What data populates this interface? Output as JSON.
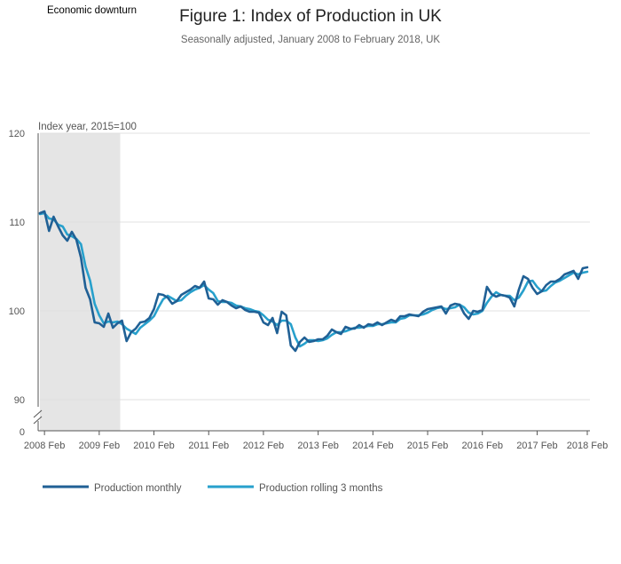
{
  "chart_data": {
    "type": "line",
    "title": "Figure 1: Index of Production in UK",
    "subtitle": "Seasonally adjusted, January 2008 to February 2018, UK",
    "ylabel": "Index year, 2015=100",
    "xlabel": "",
    "ylim": [
      90,
      120
    ],
    "y_ticks": [
      90,
      100,
      110,
      120
    ],
    "y_zero_label": "0",
    "axis_break": true,
    "grid": true,
    "x_start": "2008 Jan",
    "x_end": "2018 Feb",
    "x_tick_labels": [
      "2008 Feb",
      "2009 Feb",
      "2010 Feb",
      "2011 Feb",
      "2012 Feb",
      "2013 Feb",
      "2014 Feb",
      "2015 Feb",
      "2016 Feb",
      "2017 Feb",
      "2018 Feb"
    ],
    "shaded_region": {
      "label": "Economic downturn",
      "from": "2008 Jan",
      "to": "2009 Jun"
    },
    "legend_position": "bottom",
    "colors": {
      "monthly": "#206095",
      "rolling": "#27a0cc",
      "shade": "#e5e5e5",
      "grid": "#e0e0e0",
      "axis": "#555555"
    },
    "series": [
      {
        "name": "Production monthly",
        "values": [
          111.0,
          111.2,
          109.0,
          110.6,
          109.5,
          108.5,
          107.9,
          108.9,
          108.0,
          106.0,
          102.6,
          101.3,
          98.7,
          98.6,
          98.2,
          99.7,
          98.1,
          98.6,
          98.9,
          96.6,
          97.6,
          98.0,
          98.7,
          98.8,
          99.2,
          100.2,
          101.9,
          101.8,
          101.5,
          100.8,
          101.1,
          101.8,
          102.1,
          102.4,
          102.8,
          102.6,
          103.3,
          101.4,
          101.3,
          100.7,
          101.2,
          101.0,
          100.6,
          100.3,
          100.5,
          100.1,
          99.9,
          99.9,
          99.8,
          98.7,
          98.4,
          99.2,
          97.5,
          99.9,
          99.5,
          96.1,
          95.5,
          96.5,
          97.0,
          96.5,
          96.6,
          96.8,
          96.8,
          97.2,
          97.9,
          97.6,
          97.4,
          98.2,
          98.0,
          98.0,
          98.4,
          98.1,
          98.5,
          98.4,
          98.7,
          98.4,
          98.7,
          99.0,
          98.8,
          99.4,
          99.4,
          99.6,
          99.5,
          99.4,
          99.9,
          100.2,
          100.3,
          100.4,
          100.5,
          99.7,
          100.6,
          100.8,
          100.7,
          99.7,
          99.1,
          100.0,
          99.9,
          100.1,
          102.7,
          101.9,
          101.6,
          101.8,
          101.7,
          101.5,
          100.5,
          102.4,
          103.9,
          103.6,
          102.6,
          101.9,
          102.2,
          102.9,
          103.3,
          103.3,
          103.6,
          104.1,
          104.3,
          104.5,
          103.6,
          104.8,
          104.9
        ]
      },
      {
        "name": "Production rolling 3 months",
        "values": [
          110.9,
          111.0,
          110.4,
          110.3,
          109.7,
          109.5,
          108.6,
          108.4,
          108.1,
          107.5,
          105.0,
          103.4,
          100.8,
          99.5,
          98.6,
          98.8,
          98.7,
          98.8,
          98.5,
          98.0,
          97.7,
          97.4,
          98.1,
          98.5,
          98.9,
          99.4,
          100.4,
          101.3,
          101.7,
          101.4,
          101.1,
          101.2,
          101.7,
          102.1,
          102.4,
          102.6,
          102.9,
          102.4,
          102.0,
          101.1,
          101.0,
          101.0,
          100.9,
          100.6,
          100.5,
          100.3,
          100.2,
          100.0,
          99.9,
          99.5,
          99.0,
          98.8,
          98.4,
          98.9,
          98.9,
          98.5,
          97.0,
          96.0,
          96.3,
          96.7,
          96.7,
          96.6,
          96.7,
          96.9,
          97.3,
          97.6,
          97.6,
          97.7,
          97.9,
          98.1,
          98.1,
          98.2,
          98.3,
          98.3,
          98.5,
          98.5,
          98.6,
          98.7,
          98.7,
          99.1,
          99.2,
          99.5,
          99.5,
          99.5,
          99.6,
          99.8,
          100.1,
          100.3,
          100.4,
          100.2,
          100.3,
          100.4,
          100.7,
          100.4,
          99.8,
          99.6,
          99.7,
          100.0,
          100.9,
          101.6,
          102.1,
          101.8,
          101.7,
          101.7,
          101.2,
          101.5,
          102.3,
          103.3,
          103.4,
          102.7,
          102.2,
          102.3,
          102.8,
          103.2,
          103.4,
          103.7,
          104.0,
          104.3,
          104.1,
          104.3,
          104.4
        ]
      }
    ]
  }
}
